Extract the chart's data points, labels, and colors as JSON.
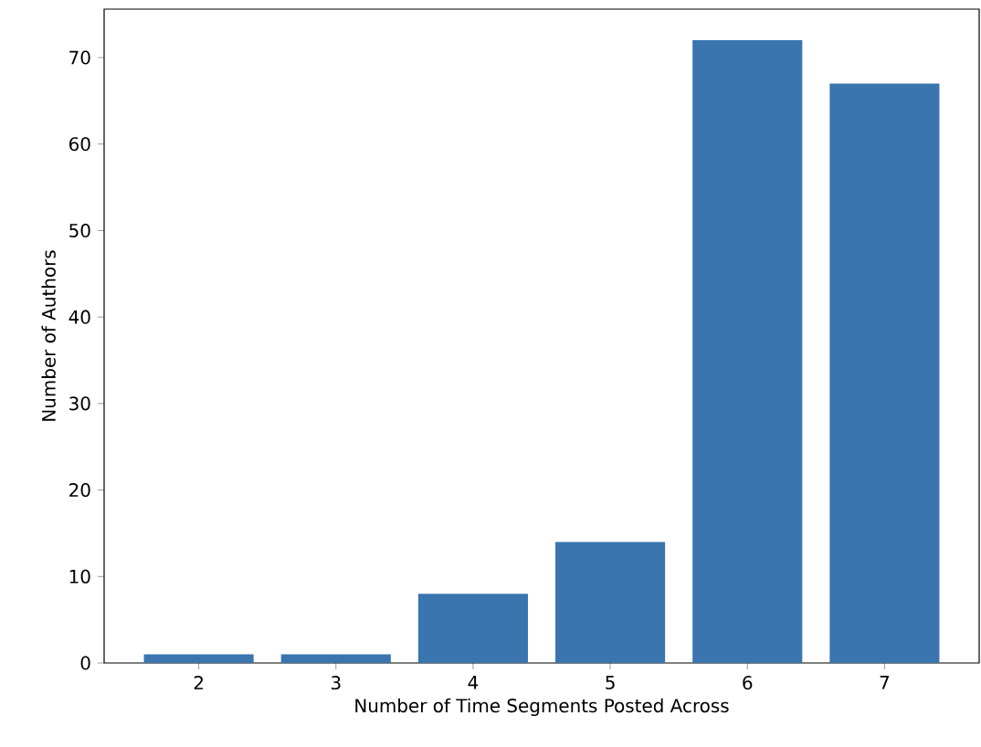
{
  "chart_data": {
    "type": "bar",
    "xlabel": "Number of Time Segments Posted Across",
    "ylabel": "Number of Authors",
    "x": [
      2,
      3,
      4,
      5,
      6,
      7
    ],
    "values": [
      1,
      1,
      8,
      14,
      72,
      67
    ],
    "color": "#3b75af",
    "xlim": [
      1.31,
      7.69
    ],
    "xticks": [
      2,
      3,
      4,
      5,
      6,
      7
    ],
    "ylim": [
      0,
      75.6
    ],
    "yticks": [
      0,
      10,
      20,
      30,
      40,
      50,
      60,
      70
    ]
  }
}
